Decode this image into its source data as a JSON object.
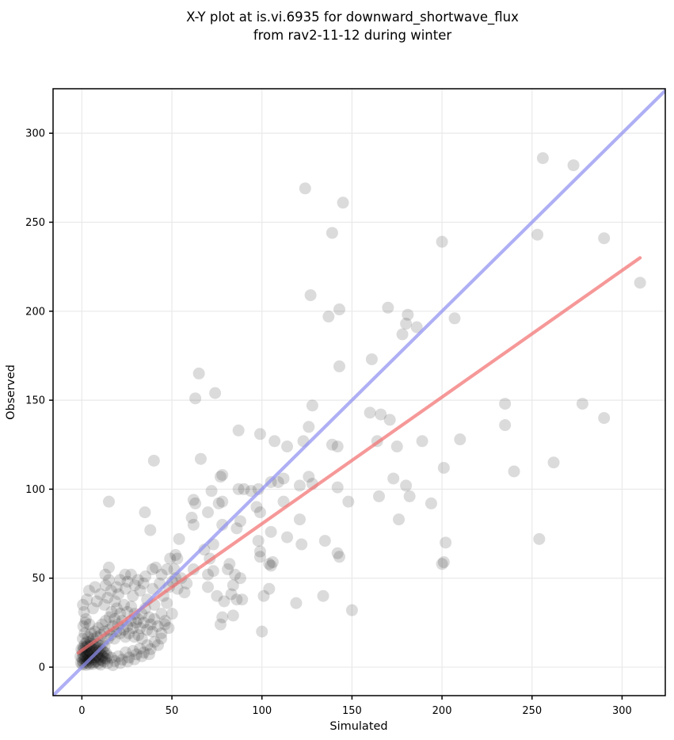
{
  "title": {
    "line1": "X-Y plot at is.vi.6935 for downward_shortwave_flux",
    "line2": "from rav2-11-12 during winter"
  },
  "chart_data": {
    "type": "scatter",
    "title": "X-Y plot at is.vi.6935 for downward_shortwave_flux from rav2-11-12 during winter",
    "xlabel": "Simulated",
    "ylabel": "Observed",
    "xlim": [
      -16,
      324
    ],
    "ylim": [
      -16,
      325
    ],
    "xticks": [
      0,
      50,
      100,
      150,
      200,
      250,
      300
    ],
    "yticks": [
      0,
      50,
      100,
      150,
      200,
      250,
      300
    ],
    "grid": true,
    "grid_color": "#e9e9e9",
    "marker": {
      "color": "#000000",
      "opacity": 0.14,
      "radius": 7.5
    },
    "lines": [
      {
        "name": "regression-line",
        "color": "#f27070",
        "opacity": 0.72,
        "width": 4.2,
        "from": [
          -2,
          8
        ],
        "to": [
          310,
          230
        ]
      },
      {
        "name": "identity-line",
        "color": "#8f90f0",
        "opacity": 0.72,
        "width": 4.2,
        "from": [
          -20,
          -20
        ],
        "to": [
          330,
          330
        ]
      }
    ],
    "points": [
      [
        124,
        269
      ],
      [
        145,
        261
      ],
      [
        139,
        244
      ],
      [
        200,
        239
      ],
      [
        127,
        209
      ],
      [
        170,
        202
      ],
      [
        143,
        201
      ],
      [
        137,
        197
      ],
      [
        181,
        198
      ],
      [
        180,
        193
      ],
      [
        186,
        191
      ],
      [
        256,
        286
      ],
      [
        273,
        282
      ],
      [
        253,
        243
      ],
      [
        290,
        241
      ],
      [
        310,
        216
      ],
      [
        207,
        196
      ],
      [
        235,
        148
      ],
      [
        235,
        136
      ],
      [
        210,
        128
      ],
      [
        278,
        148
      ],
      [
        290,
        140
      ],
      [
        201,
        112
      ],
      [
        240,
        110
      ],
      [
        262,
        115
      ],
      [
        202,
        70
      ],
      [
        254,
        72
      ],
      [
        201,
        59
      ],
      [
        200,
        58
      ],
      [
        143,
        169
      ],
      [
        161,
        173
      ],
      [
        178,
        187
      ],
      [
        128,
        147
      ],
      [
        160,
        143
      ],
      [
        166,
        142
      ],
      [
        171,
        139
      ],
      [
        87,
        133
      ],
      [
        99,
        131
      ],
      [
        107,
        127
      ],
      [
        126,
        135
      ],
      [
        114,
        124
      ],
      [
        123,
        127
      ],
      [
        139,
        125
      ],
      [
        142,
        124
      ],
      [
        164,
        127
      ],
      [
        175,
        124
      ],
      [
        189,
        127
      ],
      [
        78,
        108
      ],
      [
        105,
        104
      ],
      [
        109,
        104
      ],
      [
        112,
        106
      ],
      [
        126,
        107
      ],
      [
        128,
        103
      ],
      [
        87,
        100
      ],
      [
        90,
        100
      ],
      [
        94,
        99
      ],
      [
        98,
        100
      ],
      [
        121,
        102
      ],
      [
        142,
        101
      ],
      [
        165,
        96
      ],
      [
        173,
        106
      ],
      [
        180,
        102
      ],
      [
        182,
        96
      ],
      [
        194,
        92
      ],
      [
        148,
        93
      ],
      [
        112,
        93
      ],
      [
        97,
        90
      ],
      [
        99,
        87
      ],
      [
        88,
        82
      ],
      [
        86,
        78
      ],
      [
        78,
        80
      ],
      [
        121,
        83
      ],
      [
        176,
        83
      ],
      [
        105,
        76
      ],
      [
        114,
        73
      ],
      [
        98,
        71
      ],
      [
        122,
        69
      ],
      [
        135,
        71
      ],
      [
        99,
        65
      ],
      [
        142,
        64
      ],
      [
        106,
        59
      ],
      [
        82,
        58
      ],
      [
        105,
        57
      ],
      [
        65,
        165
      ],
      [
        63,
        151
      ],
      [
        74,
        154
      ],
      [
        40,
        116
      ],
      [
        66,
        117
      ],
      [
        77,
        107
      ],
      [
        72,
        99
      ],
      [
        76,
        92
      ],
      [
        62,
        94
      ],
      [
        63,
        92
      ],
      [
        15,
        93
      ],
      [
        35,
        87
      ],
      [
        70,
        87
      ],
      [
        61,
        84
      ],
      [
        62,
        80
      ],
      [
        38,
        77
      ],
      [
        54,
        72
      ],
      [
        73,
        69
      ],
      [
        68,
        66
      ],
      [
        52,
        63
      ],
      [
        53,
        61
      ],
      [
        71,
        61
      ],
      [
        78,
        93
      ],
      [
        15,
        56
      ],
      [
        41,
        56
      ],
      [
        4,
        43
      ],
      [
        13,
        52
      ],
      [
        15,
        49
      ],
      [
        24,
        52
      ],
      [
        49,
        61
      ],
      [
        62,
        55
      ],
      [
        70,
        52
      ],
      [
        73,
        54
      ],
      [
        81,
        55
      ],
      [
        83,
        41
      ],
      [
        77,
        24
      ],
      [
        75,
        40
      ],
      [
        70,
        45
      ],
      [
        57,
        42
      ],
      [
        52,
        50
      ],
      [
        85,
        52
      ],
      [
        88,
        50
      ],
      [
        84,
        46
      ],
      [
        99,
        62
      ],
      [
        104,
        58
      ],
      [
        104,
        44
      ],
      [
        101,
        40
      ],
      [
        86,
        38
      ],
      [
        89,
        38
      ],
      [
        79,
        37
      ],
      [
        119,
        36
      ],
      [
        134,
        40
      ],
      [
        150,
        32
      ],
      [
        84,
        29
      ],
      [
        78,
        28
      ],
      [
        100,
        20
      ],
      [
        143,
        62
      ],
      [
        -0.5,
        2.5
      ],
      [
        -0.8,
        6
      ],
      [
        -0.3,
        10
      ],
      [
        0.3,
        1.5
      ],
      [
        0.5,
        3.2
      ],
      [
        0.2,
        5.1
      ],
      [
        0.6,
        7.4
      ],
      [
        0.4,
        9.2
      ],
      [
        0.7,
        11.5
      ],
      [
        1.2,
        2.1
      ],
      [
        1.4,
        4.3
      ],
      [
        1.1,
        6.2
      ],
      [
        1.6,
        8.5
      ],
      [
        1.3,
        10.8
      ],
      [
        1.8,
        13.2
      ],
      [
        2.2,
        1.2
      ],
      [
        2.4,
        3.5
      ],
      [
        2.1,
        5.8
      ],
      [
        2.6,
        8.1
      ],
      [
        2.3,
        11.2
      ],
      [
        2.8,
        14.1
      ],
      [
        3.2,
        2.4
      ],
      [
        3.4,
        4.6
      ],
      [
        3.1,
        7.2
      ],
      [
        3.6,
        9.5
      ],
      [
        3.3,
        12.4
      ],
      [
        4.2,
        1.6
      ],
      [
        4.4,
        3.8
      ],
      [
        4.1,
        6.4
      ],
      [
        4.6,
        8.8
      ],
      [
        4.3,
        11.6
      ],
      [
        4.8,
        14.3
      ],
      [
        5.2,
        2.6
      ],
      [
        5.4,
        5.2
      ],
      [
        5.1,
        7.6
      ],
      [
        5.6,
        10.2
      ],
      [
        5.3,
        13.4
      ],
      [
        6.2,
        1.8
      ],
      [
        6.4,
        4.4
      ],
      [
        6.1,
        6.8
      ],
      [
        6.6,
        9.8
      ],
      [
        6.3,
        12.6
      ],
      [
        7.2,
        2.8
      ],
      [
        7.4,
        5.4
      ],
      [
        7.1,
        8.2
      ],
      [
        7.6,
        11.4
      ],
      [
        8.2,
        3.4
      ],
      [
        8.4,
        6.6
      ],
      [
        8.1,
        9.4
      ],
      [
        8.6,
        13.1
      ],
      [
        9.2,
        2.2
      ],
      [
        9.4,
        5.6
      ],
      [
        9.1,
        8.6
      ],
      [
        9.6,
        12.2
      ],
      [
        10.3,
        4.2
      ],
      [
        10.5,
        7.4
      ],
      [
        10.2,
        10.4
      ],
      [
        11.3,
        3.6
      ],
      [
        11.5,
        6.2
      ],
      [
        11.2,
        9.6
      ],
      [
        11.6,
        13.5
      ],
      [
        12.4,
        5.3
      ],
      [
        12.2,
        8.4
      ],
      [
        12.6,
        11.8
      ],
      [
        13.3,
        4.8
      ],
      [
        13.5,
        7.8
      ],
      [
        14.2,
        6.3
      ],
      [
        0.5,
        16
      ],
      [
        1.5,
        19
      ],
      [
        0.8,
        23
      ],
      [
        2.2,
        27
      ],
      [
        1.2,
        31
      ],
      [
        0.6,
        35
      ],
      [
        2.8,
        38
      ],
      [
        1.9,
        25
      ],
      [
        3.5,
        17
      ],
      [
        5.1,
        19
      ],
      [
        4.2,
        24
      ],
      [
        6.5,
        16
      ],
      [
        7.2,
        20
      ],
      [
        8.5,
        17
      ],
      [
        9.1,
        22
      ],
      [
        10.5,
        18
      ],
      [
        11.2,
        24
      ],
      [
        12.5,
        20
      ],
      [
        13.1,
        26
      ],
      [
        14.5,
        16
      ],
      [
        15.2,
        21
      ],
      [
        16.1,
        18
      ],
      [
        17.2,
        23
      ],
      [
        18.1,
        16
      ],
      [
        19.2,
        20
      ],
      [
        15.4,
        28
      ],
      [
        16.5,
        31
      ],
      [
        18.2,
        27
      ],
      [
        20.1,
        24
      ],
      [
        21.2,
        19
      ],
      [
        22.3,
        26
      ],
      [
        23.1,
        21
      ],
      [
        24.2,
        17
      ],
      [
        25.3,
        23
      ],
      [
        26.1,
        19
      ],
      [
        27.2,
        26
      ],
      [
        28.3,
        22
      ],
      [
        29.1,
        17
      ],
      [
        30.2,
        25
      ],
      [
        19.4,
        33
      ],
      [
        21.3,
        30
      ],
      [
        23.4,
        35
      ],
      [
        25.2,
        31
      ],
      [
        27.4,
        34
      ],
      [
        29.3,
        30
      ],
      [
        31.2,
        27
      ],
      [
        32.3,
        22
      ],
      [
        33.2,
        30
      ],
      [
        34.3,
        25
      ],
      [
        35.2,
        33
      ],
      [
        31.4,
        18
      ],
      [
        33.4,
        16
      ],
      [
        36.2,
        21
      ],
      [
        37.3,
        28
      ],
      [
        38.2,
        24
      ],
      [
        39.1,
        20
      ],
      [
        40.2,
        27
      ],
      [
        42.1,
        23
      ],
      [
        44.2,
        19
      ],
      [
        46.1,
        24
      ],
      [
        10.4,
        1.4
      ],
      [
        12.3,
        3.1
      ],
      [
        14.2,
        2.2
      ],
      [
        16.4,
        5.3
      ],
      [
        18.3,
        3.4
      ],
      [
        20.2,
        6.1
      ],
      [
        22.4,
        4.2
      ],
      [
        24.3,
        8.3
      ],
      [
        26.2,
        5.4
      ],
      [
        28.4,
        9.1
      ],
      [
        30.3,
        7.2
      ],
      [
        32.2,
        10.4
      ],
      [
        34.4,
        8.2
      ],
      [
        36.3,
        12.3
      ],
      [
        38.2,
        10.1
      ],
      [
        40.4,
        14.2
      ],
      [
        42.3,
        12.4
      ],
      [
        44.1,
        16.1
      ],
      [
        17.2,
        1.1
      ],
      [
        21.3,
        2.3
      ],
      [
        25.4,
        3.2
      ],
      [
        29.2,
        4.4
      ],
      [
        33.3,
        6.1
      ],
      [
        37.4,
        7.3
      ],
      [
        6.2,
        33
      ],
      [
        8.3,
        37
      ],
      [
        10.2,
        41
      ],
      [
        12.4,
        35
      ],
      [
        14.3,
        39
      ],
      [
        16.2,
        43
      ],
      [
        18.4,
        37
      ],
      [
        20.3,
        41
      ],
      [
        7.3,
        45
      ],
      [
        13.2,
        46
      ],
      [
        19.3,
        45
      ],
      [
        24.2,
        44
      ],
      [
        28.3,
        40
      ],
      [
        32.4,
        43
      ],
      [
        36.2,
        38
      ],
      [
        40.3,
        35
      ],
      [
        44.2,
        30
      ],
      [
        46.3,
        26
      ],
      [
        48.2,
        22
      ],
      [
        45.3,
        40
      ],
      [
        47.2,
        36
      ],
      [
        50.1,
        30
      ],
      [
        48.4,
        45
      ],
      [
        43.2,
        47
      ],
      [
        39.3,
        44
      ],
      [
        34.2,
        47
      ],
      [
        29.4,
        46
      ],
      [
        25.3,
        48
      ],
      [
        21.2,
        49
      ],
      [
        27.3,
        52
      ],
      [
        31.2,
        49
      ],
      [
        35.3,
        51
      ],
      [
        44.3,
        52
      ],
      [
        39.2,
        55
      ],
      [
        47.3,
        55
      ],
      [
        50.2,
        48
      ],
      [
        53.1,
        44
      ],
      [
        55.2,
        50
      ],
      [
        51.3,
        55
      ],
      [
        58.2,
        47
      ]
    ]
  }
}
